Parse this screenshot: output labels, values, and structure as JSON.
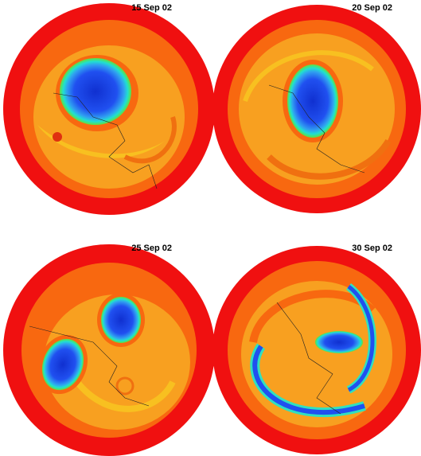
{
  "panels": [
    {
      "label": "15 Sep 02"
    },
    {
      "label": "20 Sep 02"
    },
    {
      "label": "25 Sep 02"
    },
    {
      "label": "30 Sep 02"
    }
  ]
}
